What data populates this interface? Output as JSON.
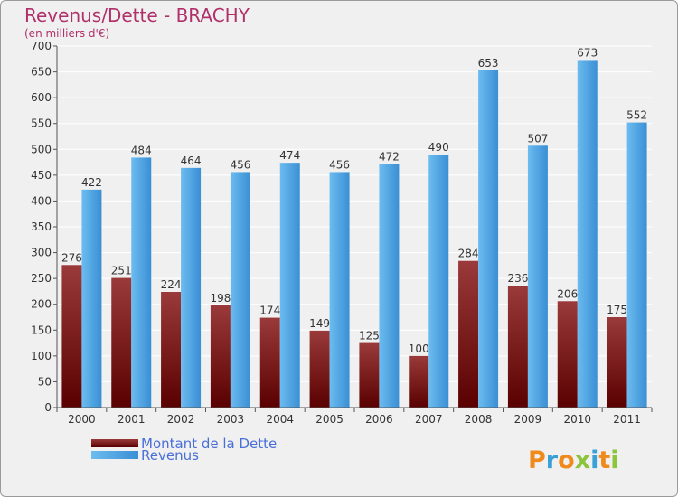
{
  "chart_data": {
    "type": "bar",
    "title": "Revenus/Dette - BRACHY",
    "subtitle": "(en milliers d'€)",
    "categories": [
      "2000",
      "2001",
      "2002",
      "2003",
      "2004",
      "2005",
      "2006",
      "2007",
      "2008",
      "2009",
      "2010",
      "2011"
    ],
    "series": [
      {
        "name": "Montant de la Dette",
        "values": [
          276,
          251,
          224,
          198,
          174,
          149,
          125,
          100,
          284,
          236,
          206,
          175
        ],
        "color": "#7a1010"
      },
      {
        "name": "Revenus",
        "values": [
          422,
          484,
          464,
          456,
          474,
          456,
          472,
          490,
          653,
          507,
          673,
          552
        ],
        "color": "#4ea6e6"
      }
    ],
    "ylim": [
      0,
      700
    ],
    "yticks": [
      0,
      50,
      100,
      150,
      200,
      250,
      300,
      350,
      400,
      450,
      500,
      550,
      600,
      650,
      700
    ],
    "grid": true,
    "legend_position": "bottom-left",
    "xlabel": "",
    "ylabel": ""
  },
  "logo": {
    "text": "Proxiti"
  }
}
